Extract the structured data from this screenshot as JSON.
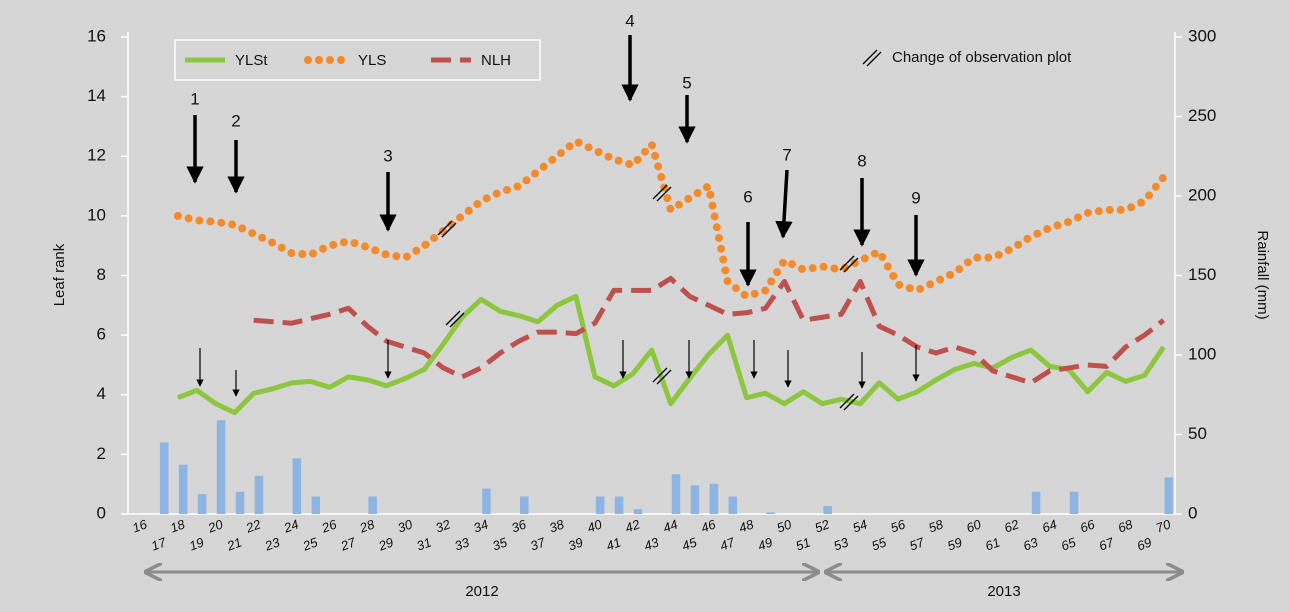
{
  "chart_data": {
    "type": "line",
    "categories": [
      16,
      17,
      18,
      19,
      20,
      21,
      22,
      23,
      24,
      25,
      26,
      27,
      28,
      29,
      30,
      31,
      32,
      33,
      34,
      35,
      36,
      37,
      38,
      39,
      40,
      41,
      42,
      43,
      44,
      45,
      46,
      47,
      48,
      49,
      50,
      51,
      52,
      53,
      54,
      55,
      56,
      57,
      58,
      59,
      60,
      61,
      62,
      63,
      64,
      65,
      66,
      67,
      68,
      69,
      70
    ],
    "y_label": "Leaf rank",
    "y2_label": "Rainfall  (mm)",
    "ylim": [
      0,
      16
    ],
    "yticks": [
      0,
      2,
      4,
      6,
      8,
      10,
      12,
      14,
      16
    ],
    "y2lim": [
      0,
      300
    ],
    "y2ticks": [
      0,
      50,
      100,
      150,
      200,
      250,
      300
    ],
    "legend": "top-left",
    "series": [
      {
        "name": "YLSt",
        "color": "#8dc63f",
        "dash": "solid",
        "values": [
          null,
          null,
          3.9,
          4.15,
          3.7,
          3.4,
          4.05,
          4.2,
          4.4,
          4.45,
          4.25,
          4.6,
          4.5,
          4.3,
          4.55,
          4.85,
          5.7,
          6.6,
          7.2,
          6.8,
          6.65,
          6.45,
          7.0,
          7.3,
          4.6,
          4.3,
          4.7,
          5.5,
          3.7,
          4.55,
          5.35,
          6.0,
          3.9,
          4.05,
          3.7,
          4.1,
          3.7,
          3.85,
          3.7,
          4.4,
          3.85,
          4.1,
          4.5,
          4.85,
          5.05,
          4.9,
          5.25,
          5.5,
          4.95,
          4.85,
          4.1,
          4.75,
          4.45,
          4.65,
          5.6
        ]
      },
      {
        "name": "YLS",
        "color": "#f58a2a",
        "dash": "dotted",
        "values": [
          null,
          null,
          10.0,
          9.85,
          9.8,
          9.7,
          9.4,
          9.1,
          8.75,
          8.7,
          9.0,
          9.15,
          8.95,
          8.7,
          8.6,
          9.0,
          9.5,
          10.0,
          10.5,
          10.8,
          11.0,
          11.5,
          12.0,
          12.5,
          12.2,
          11.9,
          11.7,
          12.4,
          10.2,
          10.6,
          11.0,
          7.8,
          7.3,
          7.5,
          8.5,
          8.2,
          8.3,
          8.2,
          8.5,
          8.8,
          7.7,
          7.5,
          7.8,
          8.1,
          8.6,
          8.6,
          8.9,
          9.3,
          9.6,
          9.8,
          10.1,
          10.2,
          10.2,
          10.5,
          11.3
        ]
      },
      {
        "name": "NLH",
        "color": "#c0504d",
        "dash": "dashed",
        "values": [
          null,
          null,
          null,
          null,
          null,
          null,
          6.5,
          6.45,
          6.4,
          6.55,
          6.7,
          6.9,
          6.3,
          5.8,
          5.6,
          5.4,
          4.9,
          4.6,
          4.9,
          5.4,
          5.8,
          6.1,
          6.1,
          6.05,
          6.4,
          7.5,
          7.5,
          7.5,
          7.9,
          7.3,
          7.0,
          6.7,
          6.75,
          6.9,
          7.8,
          6.5,
          6.6,
          6.7,
          7.8,
          6.3,
          6.0,
          5.6,
          5.4,
          5.6,
          5.4,
          4.8,
          4.6,
          4.4,
          4.8,
          4.9,
          5.0,
          4.95,
          5.6,
          6.0,
          6.5
        ]
      },
      {
        "name": "Rainfall",
        "type": "bar",
        "axis": "y2",
        "color": "#8db4e2",
        "values": [
          null,
          45,
          31,
          12.5,
          59,
          14,
          24,
          null,
          35,
          11,
          null,
          null,
          11,
          null,
          null,
          null,
          null,
          null,
          16,
          null,
          11,
          null,
          null,
          null,
          11,
          11,
          3,
          null,
          25,
          18,
          19,
          11,
          null,
          1,
          null,
          null,
          5,
          null,
          null,
          null,
          null,
          null,
          null,
          null,
          null,
          null,
          null,
          14,
          null,
          14,
          null,
          null,
          null,
          null,
          23
        ]
      }
    ],
    "legend_note": "Change of observation plot",
    "event_labels": [
      "1",
      "2",
      "3",
      "4",
      "5",
      "6",
      "7",
      "8",
      "9"
    ],
    "periods": [
      "2012",
      "2013"
    ]
  }
}
